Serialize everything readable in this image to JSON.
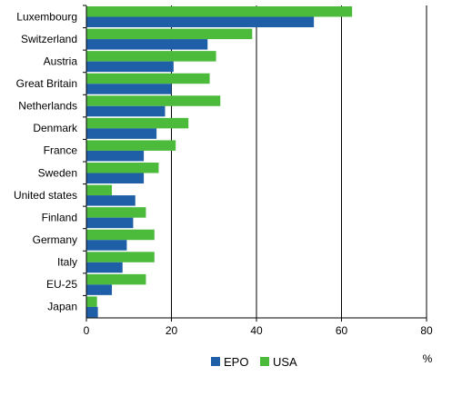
{
  "chart_data": {
    "type": "bar",
    "orientation": "horizontal",
    "categories": [
      "Luxembourg",
      "Switzerland",
      "Austria",
      "Great Britain",
      "Netherlands",
      "Denmark",
      "France",
      "Sweden",
      "United states",
      "Finland",
      "Germany",
      "Italy",
      "EU-25",
      "Japan"
    ],
    "series": [
      {
        "name": "EPO",
        "color": "#1f5fa8",
        "values": [
          53.5,
          28.5,
          20.5,
          20.0,
          18.5,
          16.5,
          13.5,
          13.5,
          11.5,
          11.0,
          9.5,
          8.5,
          6.0,
          2.7
        ]
      },
      {
        "name": "USA",
        "color": "#4cbb3c",
        "values": [
          62.5,
          39.0,
          30.5,
          29.0,
          31.5,
          24.0,
          21.0,
          17.0,
          6.0,
          14.0,
          16.0,
          16.0,
          14.0,
          2.5
        ]
      }
    ],
    "xlim": [
      0,
      80
    ],
    "xticks": [
      0,
      20,
      40,
      60,
      80
    ],
    "unit_label": "%",
    "grid": "vertical",
    "legend": "bottom-center"
  }
}
